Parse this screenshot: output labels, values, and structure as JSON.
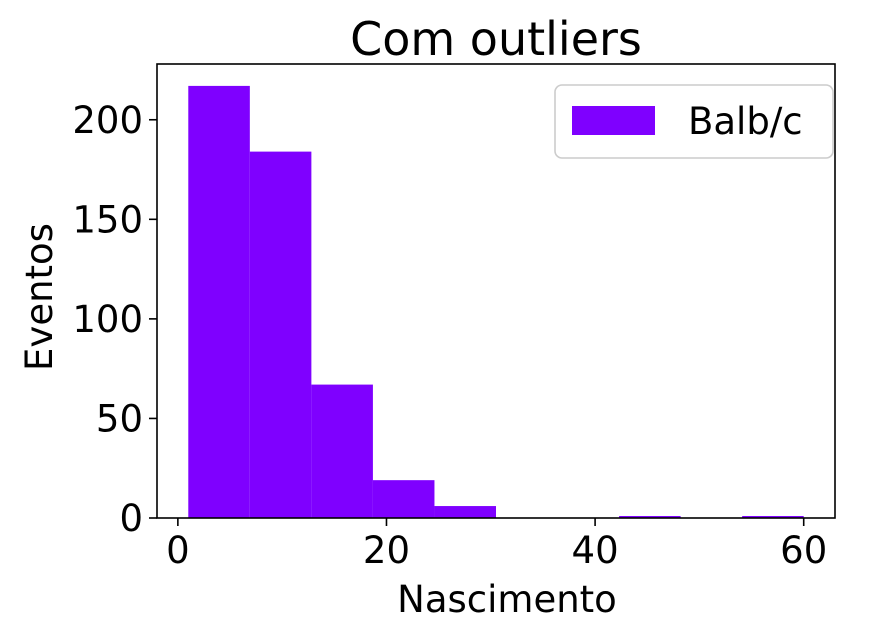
{
  "chart_data": {
    "type": "bar",
    "title": "Com outliers",
    "xlabel": "Nascimento",
    "ylabel": "Eventos",
    "xlim": [
      -2,
      63
    ],
    "ylim": [
      0,
      228
    ],
    "xticks": [
      0,
      20,
      40,
      60
    ],
    "yticks": [
      0,
      50,
      100,
      150,
      200
    ],
    "grid": false,
    "legend": {
      "position": "upper-right"
    },
    "color": "#7f00ff",
    "series": [
      {
        "name": "Balb/c",
        "bins": [
          {
            "x0": 1.0,
            "x1": 6.9,
            "value": 217
          },
          {
            "x0": 6.9,
            "x1": 12.8,
            "value": 184
          },
          {
            "x0": 12.8,
            "x1": 18.7,
            "value": 67
          },
          {
            "x0": 18.7,
            "x1": 24.6,
            "value": 19
          },
          {
            "x0": 24.6,
            "x1": 30.5,
            "value": 6
          },
          {
            "x0": 30.5,
            "x1": 36.4,
            "value": 0
          },
          {
            "x0": 36.4,
            "x1": 42.3,
            "value": 0
          },
          {
            "x0": 42.3,
            "x1": 48.2,
            "value": 1
          },
          {
            "x0": 48.2,
            "x1": 54.1,
            "value": 0
          },
          {
            "x0": 54.1,
            "x1": 60.0,
            "value": 1
          }
        ]
      }
    ]
  }
}
